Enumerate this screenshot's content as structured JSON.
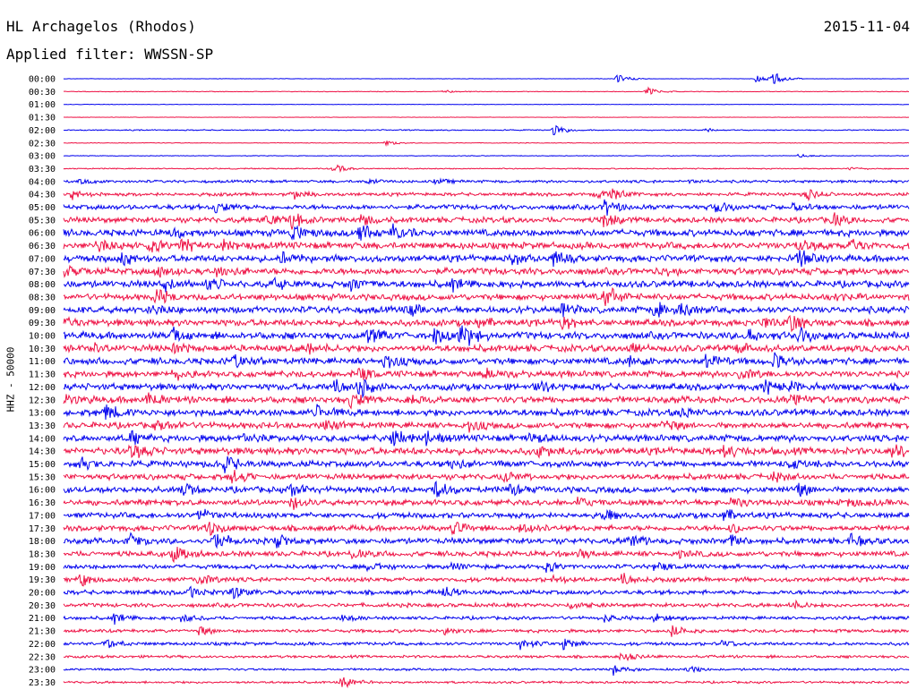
{
  "header": {
    "station": "HL Archagelos (Rhodos)",
    "date": "2015-11-04",
    "filter": "Applied filter: WWSSN-SP"
  },
  "chart_data": {
    "type": "line",
    "ylabel": "HHZ - 50000",
    "rows": [
      "00:00",
      "00:30",
      "01:00",
      "01:30",
      "02:00",
      "02:30",
      "03:00",
      "03:30",
      "04:00",
      "04:30",
      "05:00",
      "05:30",
      "06:00",
      "06:30",
      "07:00",
      "07:30",
      "08:00",
      "08:30",
      "09:00",
      "09:30",
      "10:00",
      "10:30",
      "11:00",
      "11:30",
      "12:00",
      "12:30",
      "13:00",
      "13:30",
      "14:00",
      "14:30",
      "15:00",
      "15:30",
      "16:00",
      "16:30",
      "17:00",
      "17:30",
      "18:00",
      "18:30",
      "19:00",
      "19:30",
      "20:00",
      "20:30",
      "21:00",
      "21:30",
      "22:00",
      "22:30",
      "23:00",
      "23:30"
    ],
    "colors": [
      "#0000ee",
      "#ee1144"
    ],
    "noise_level": [
      0.2,
      0.3,
      0.2,
      0.2,
      0.5,
      0.3,
      0.3,
      0.5,
      1.2,
      1.5,
      2.2,
      2.5,
      3.0,
      3.0,
      3.0,
      3.0,
      3.0,
      2.8,
      3.0,
      3.0,
      3.2,
      3.0,
      3.0,
      2.8,
      3.0,
      3.0,
      3.0,
      2.8,
      3.0,
      3.2,
      2.8,
      2.6,
      2.8,
      2.6,
      2.5,
      2.5,
      2.6,
      2.4,
      2.0,
      2.0,
      2.0,
      1.8,
      1.5,
      1.5,
      1.5,
      1.2,
      1.0,
      1.0
    ],
    "events": [
      [
        [
          0.655,
          6
        ],
        [
          0.82,
          5
        ],
        [
          0.84,
          8
        ]
      ],
      [
        [
          0.69,
          6
        ],
        [
          0.45,
          2
        ]
      ],
      [],
      [],
      [
        [
          0.58,
          8
        ],
        [
          0.76,
          2
        ]
      ],
      [
        [
          0.38,
          4
        ]
      ],
      [
        [
          0.87,
          2
        ]
      ],
      [
        [
          0.32,
          6
        ],
        [
          0.93,
          2
        ]
      ],
      [
        [
          0.02,
          4
        ],
        [
          0.36,
          3
        ],
        [
          0.44,
          3
        ],
        [
          0.74,
          2
        ]
      ],
      [
        [
          0.01,
          6
        ],
        [
          0.27,
          6
        ],
        [
          0.63,
          6
        ],
        [
          0.65,
          7
        ],
        [
          0.88,
          6
        ]
      ],
      [
        [
          0.18,
          6
        ],
        [
          0.64,
          10
        ],
        [
          0.77,
          8
        ],
        [
          0.86,
          5
        ]
      ],
      [
        [
          0.24,
          8
        ],
        [
          0.27,
          9
        ],
        [
          0.35,
          7
        ],
        [
          0.64,
          9
        ],
        [
          0.91,
          8
        ]
      ],
      [
        [
          0.27,
          10
        ],
        [
          0.35,
          12
        ],
        [
          0.39,
          9
        ],
        [
          0.13,
          5
        ]
      ],
      [
        [
          0.04,
          7
        ],
        [
          0.1,
          8
        ],
        [
          0.14,
          9
        ],
        [
          0.19,
          6
        ],
        [
          0.87,
          6
        ],
        [
          0.93,
          8
        ]
      ],
      [
        [
          0.07,
          8
        ],
        [
          0.26,
          10
        ],
        [
          0.53,
          9
        ],
        [
          0.58,
          7
        ],
        [
          0.87,
          9
        ]
      ],
      [
        [
          0.0,
          6
        ],
        [
          0.11,
          9
        ],
        [
          0.18,
          7
        ],
        [
          0.71,
          5
        ]
      ],
      [
        [
          0.12,
          8
        ],
        [
          0.17,
          8
        ],
        [
          0.25,
          6
        ],
        [
          0.34,
          8
        ],
        [
          0.46,
          6
        ]
      ],
      [
        [
          0.11,
          10
        ],
        [
          0.64,
          8
        ],
        [
          0.65,
          6
        ],
        [
          0.91,
          5
        ]
      ],
      [
        [
          0.1,
          6
        ],
        [
          0.41,
          6
        ],
        [
          0.59,
          7
        ],
        [
          0.7,
          10
        ],
        [
          0.73,
          8
        ]
      ],
      [
        [
          0.0,
          6
        ],
        [
          0.49,
          6
        ],
        [
          0.59,
          7
        ],
        [
          0.83,
          8
        ],
        [
          0.86,
          10
        ]
      ],
      [
        [
          0.13,
          8
        ],
        [
          0.36,
          10
        ],
        [
          0.44,
          12
        ],
        [
          0.47,
          10
        ],
        [
          0.48,
          6
        ],
        [
          0.81,
          8
        ],
        [
          0.87,
          9
        ]
      ],
      [
        [
          0.03,
          7
        ],
        [
          0.13,
          6
        ],
        [
          0.29,
          6
        ],
        [
          0.67,
          7
        ],
        [
          0.8,
          8
        ]
      ],
      [
        [
          0.2,
          8
        ],
        [
          0.38,
          10
        ],
        [
          0.67,
          8
        ],
        [
          0.76,
          10
        ],
        [
          0.84,
          8
        ]
      ],
      [
        [
          0.13,
          6
        ],
        [
          0.35,
          8
        ],
        [
          0.5,
          6
        ],
        [
          0.8,
          6
        ]
      ],
      [
        [
          0.32,
          8
        ],
        [
          0.35,
          10
        ],
        [
          0.56,
          6
        ],
        [
          0.83,
          8
        ],
        [
          0.86,
          6
        ]
      ],
      [
        [
          0.0,
          6
        ],
        [
          0.1,
          10
        ],
        [
          0.34,
          9
        ],
        [
          0.41,
          6
        ],
        [
          0.86,
          9
        ]
      ],
      [
        [
          0.05,
          9
        ],
        [
          0.3,
          7
        ],
        [
          0.73,
          6
        ]
      ],
      [
        [
          0.11,
          6
        ],
        [
          0.31,
          7
        ],
        [
          0.48,
          7
        ],
        [
          0.71,
          6
        ]
      ],
      [
        [
          0.08,
          6
        ],
        [
          0.21,
          8
        ],
        [
          0.39,
          12
        ],
        [
          0.43,
          10
        ],
        [
          0.55,
          6
        ]
      ],
      [
        [
          0.08,
          8
        ],
        [
          0.56,
          6
        ],
        [
          0.78,
          8
        ],
        [
          0.98,
          10
        ]
      ],
      [
        [
          0.02,
          6
        ],
        [
          0.19,
          10
        ],
        [
          0.46,
          6
        ],
        [
          0.86,
          6
        ]
      ],
      [
        [
          0.2,
          9
        ],
        [
          0.52,
          6
        ],
        [
          0.84,
          6
        ]
      ],
      [
        [
          0.14,
          8
        ],
        [
          0.27,
          7
        ],
        [
          0.44,
          9
        ],
        [
          0.53,
          7
        ],
        [
          0.87,
          7
        ]
      ],
      [
        [
          0.27,
          8
        ],
        [
          0.61,
          6
        ],
        [
          0.79,
          6
        ],
        [
          0.93,
          6
        ]
      ],
      [
        [
          0.16,
          9
        ],
        [
          0.64,
          6
        ],
        [
          0.78,
          8
        ]
      ],
      [
        [
          0.17,
          10
        ],
        [
          0.46,
          8
        ],
        [
          0.54,
          6
        ],
        [
          0.79,
          6
        ]
      ],
      [
        [
          0.08,
          8
        ],
        [
          0.18,
          10
        ],
        [
          0.25,
          9
        ],
        [
          0.67,
          8
        ],
        [
          0.79,
          7
        ],
        [
          0.93,
          7
        ]
      ],
      [
        [
          0.13,
          10
        ],
        [
          0.34,
          6
        ],
        [
          0.61,
          5
        ],
        [
          0.73,
          4
        ]
      ],
      [
        [
          0.36,
          7
        ],
        [
          0.46,
          7
        ],
        [
          0.57,
          6
        ],
        [
          0.7,
          6
        ]
      ],
      [
        [
          0.02,
          8
        ],
        [
          0.16,
          7
        ],
        [
          0.58,
          5
        ],
        [
          0.66,
          8
        ]
      ],
      [
        [
          0.15,
          7
        ],
        [
          0.2,
          8
        ],
        [
          0.45,
          7
        ]
      ],
      [
        [
          0.6,
          5
        ],
        [
          0.86,
          5
        ]
      ],
      [
        [
          0.06,
          6
        ],
        [
          0.14,
          5
        ],
        [
          0.33,
          5
        ],
        [
          0.64,
          5
        ],
        [
          0.7,
          5
        ]
      ],
      [
        [
          0.16,
          5
        ],
        [
          0.45,
          5
        ],
        [
          0.72,
          8
        ]
      ],
      [
        [
          0.05,
          7
        ],
        [
          0.54,
          7
        ],
        [
          0.59,
          8
        ],
        [
          0.78,
          5
        ]
      ],
      [
        [
          0.66,
          6
        ]
      ],
      [
        [
          0.65,
          6
        ],
        [
          0.74,
          5
        ]
      ],
      [
        [
          0.33,
          9
        ]
      ]
    ]
  }
}
